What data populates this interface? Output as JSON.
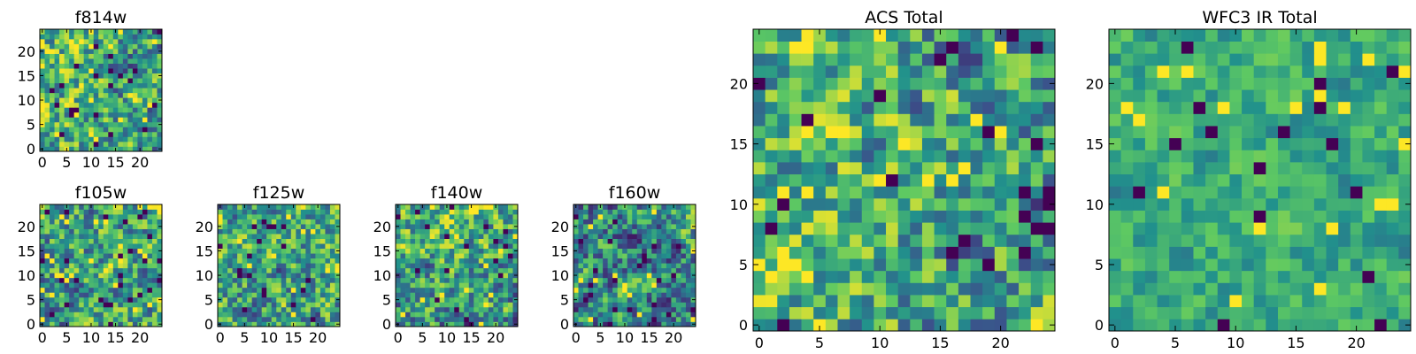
{
  "figure": {
    "title": ""
  },
  "colormap": {
    "name": "viridis",
    "stops": [
      "#440154",
      "#3b528b",
      "#21918c",
      "#5ec962",
      "#fde725"
    ]
  },
  "chart_data": [
    {
      "type": "heatmap",
      "title": "f814w",
      "grid": [
        25,
        25
      ],
      "seed": 11,
      "bias": "left-bottom-bright",
      "xticks": [
        "0",
        "5",
        "10",
        "15",
        "20"
      ],
      "yticks": [
        "0",
        "5",
        "10",
        "15",
        "20"
      ],
      "xlim": [
        0,
        24
      ],
      "ylim": [
        0,
        24
      ]
    },
    {
      "type": "heatmap",
      "title": "f105w",
      "grid": [
        25,
        25
      ],
      "seed": 22,
      "bias": "uniform",
      "xticks": [
        "0",
        "5",
        "10",
        "15",
        "20"
      ],
      "yticks": [
        "0",
        "5",
        "10",
        "15",
        "20"
      ],
      "xlim": [
        0,
        24
      ],
      "ylim": [
        0,
        24
      ]
    },
    {
      "type": "heatmap",
      "title": "f125w",
      "grid": [
        25,
        25
      ],
      "seed": 33,
      "bias": "uniform",
      "xticks": [
        "0",
        "5",
        "10",
        "15",
        "20"
      ],
      "yticks": [
        "0",
        "5",
        "10",
        "15",
        "20"
      ],
      "xlim": [
        0,
        24
      ],
      "ylim": [
        0,
        24
      ]
    },
    {
      "type": "heatmap",
      "title": "f140w",
      "grid": [
        25,
        25
      ],
      "seed": 44,
      "bias": "top-bright",
      "xticks": [
        "0",
        "5",
        "10",
        "15",
        "20"
      ],
      "yticks": [
        "0",
        "5",
        "10",
        "15",
        "20"
      ],
      "xlim": [
        0,
        24
      ],
      "ylim": [
        0,
        24
      ]
    },
    {
      "type": "heatmap",
      "title": "f160w",
      "grid": [
        25,
        25
      ],
      "seed": 55,
      "bias": "top-right-bright",
      "xticks": [
        "0",
        "5",
        "10",
        "15",
        "20"
      ],
      "yticks": [
        "0",
        "5",
        "10",
        "15",
        "20"
      ],
      "xlim": [
        0,
        24
      ],
      "ylim": [
        0,
        24
      ]
    },
    {
      "type": "heatmap",
      "title": "ACS Total",
      "grid": [
        25,
        25
      ],
      "seed": 66,
      "bias": "left-bright",
      "xticks": [
        "0",
        "5",
        "10",
        "15",
        "20"
      ],
      "yticks": [
        "0",
        "5",
        "10",
        "15",
        "20"
      ],
      "xlim": [
        0,
        24
      ],
      "ylim": [
        0,
        24
      ]
    },
    {
      "type": "heatmap",
      "title": "WFC3 IR Total",
      "grid": [
        25,
        25
      ],
      "seed": 77,
      "bias": "green",
      "xticks": [
        "0",
        "5",
        "10",
        "15",
        "20"
      ],
      "yticks": [
        "0",
        "5",
        "10",
        "15",
        "20"
      ],
      "xlim": [
        0,
        24
      ],
      "ylim": [
        0,
        24
      ]
    }
  ]
}
